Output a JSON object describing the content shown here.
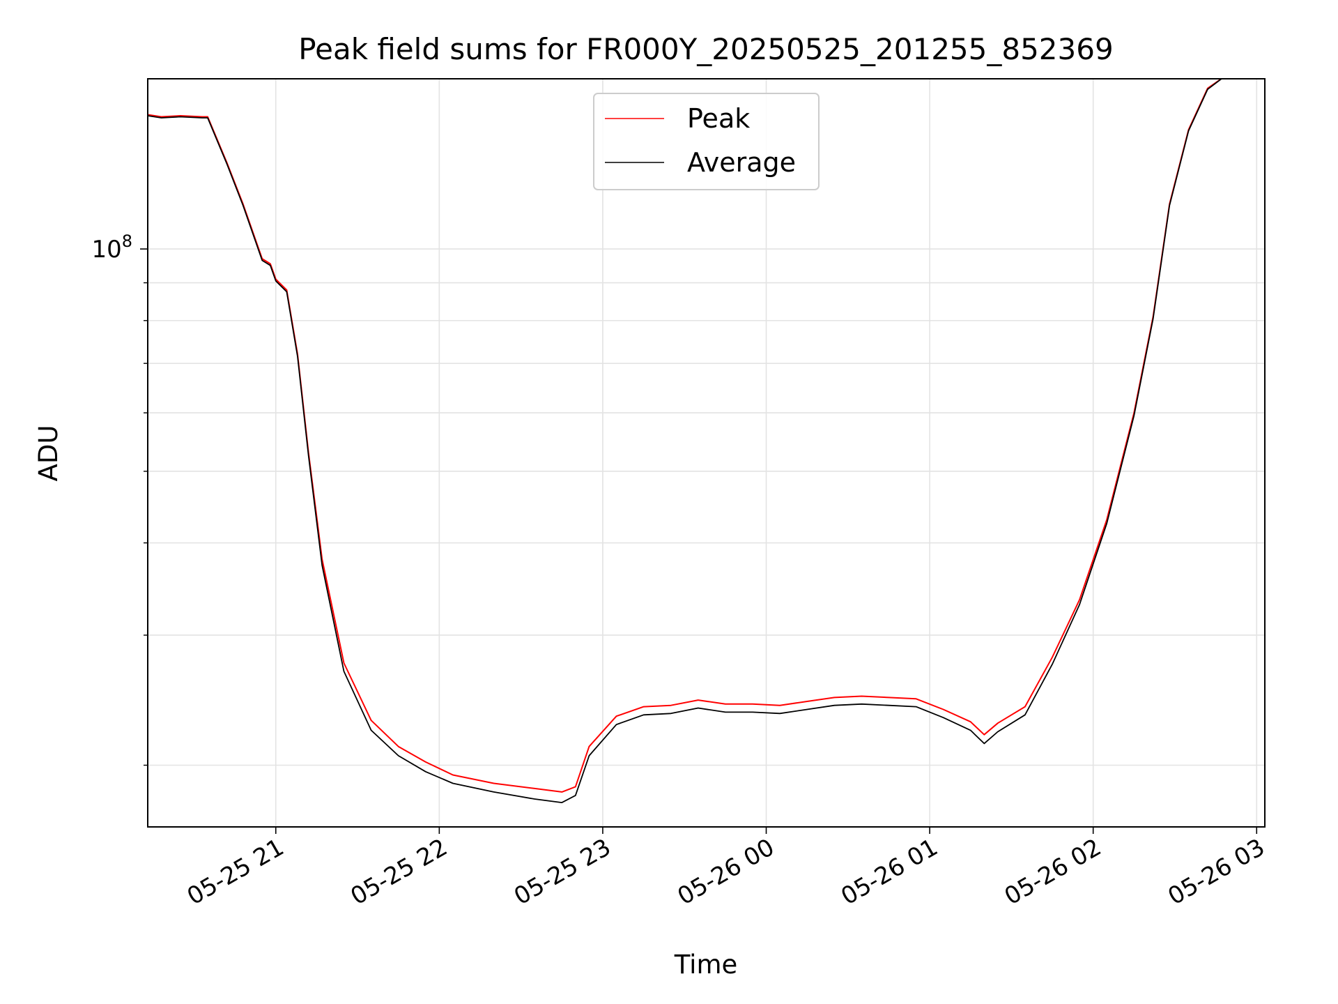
{
  "chart_data": {
    "type": "line",
    "title": "Peak field sums for FR000Y_20250525_201255_852369",
    "xlabel": "Time",
    "ylabel": "ADU",
    "y_scale": "log",
    "grid": true,
    "grid_minor_y": true,
    "legend_position": "upper center",
    "xlim": [
      "2025-05-25 20:13",
      "2025-05-26 03:03"
    ],
    "ylim": [
      16500000,
      170000000
    ],
    "x_ticks": [
      {
        "t": "2025-05-25 21:00",
        "label": "05-25 21"
      },
      {
        "t": "2025-05-25 22:00",
        "label": "05-25 22"
      },
      {
        "t": "2025-05-25 23:00",
        "label": "05-25 23"
      },
      {
        "t": "2025-05-26 00:00",
        "label": "05-26 00"
      },
      {
        "t": "2025-05-26 01:00",
        "label": "05-26 01"
      },
      {
        "t": "2025-05-26 02:00",
        "label": "05-26 02"
      },
      {
        "t": "2025-05-26 03:00",
        "label": "05-26 03"
      }
    ],
    "y_major_ticks": [
      {
        "v": 100000000,
        "base": "10",
        "exp": "8"
      }
    ],
    "y_minor_ticks": [
      20000000,
      30000000,
      40000000,
      50000000,
      60000000,
      70000000,
      80000000,
      90000000
    ],
    "series": [
      {
        "name": "Peak",
        "color": "#ff0000",
        "points": [
          [
            "2025-05-25 20:13",
            152000000
          ],
          [
            "2025-05-25 20:18",
            151000000
          ],
          [
            "2025-05-25 20:25",
            151500000
          ],
          [
            "2025-05-25 20:33",
            151000000
          ],
          [
            "2025-05-25 20:35",
            151000000
          ],
          [
            "2025-05-25 20:42",
            131000000
          ],
          [
            "2025-05-25 20:48",
            115000000
          ],
          [
            "2025-05-25 20:55",
            97000000
          ],
          [
            "2025-05-25 20:58",
            95500000
          ],
          [
            "2025-05-25 21:00",
            91000000
          ],
          [
            "2025-05-25 21:04",
            88000000
          ],
          [
            "2025-05-25 21:08",
            72000000
          ],
          [
            "2025-05-25 21:12",
            53000000
          ],
          [
            "2025-05-25 21:17",
            38000000
          ],
          [
            "2025-05-25 21:25",
            27500000
          ],
          [
            "2025-05-25 21:35",
            23000000
          ],
          [
            "2025-05-25 21:45",
            21200000
          ],
          [
            "2025-05-25 21:55",
            20200000
          ],
          [
            "2025-05-25 22:05",
            19400000
          ],
          [
            "2025-05-25 22:20",
            18900000
          ],
          [
            "2025-05-25 22:35",
            18600000
          ],
          [
            "2025-05-25 22:45",
            18400000
          ],
          [
            "2025-05-25 22:50",
            18700000
          ],
          [
            "2025-05-25 22:55",
            21200000
          ],
          [
            "2025-05-25 23:05",
            23300000
          ],
          [
            "2025-05-25 23:15",
            24000000
          ],
          [
            "2025-05-25 23:25",
            24100000
          ],
          [
            "2025-05-25 23:35",
            24500000
          ],
          [
            "2025-05-25 23:45",
            24200000
          ],
          [
            "2025-05-25 23:55",
            24200000
          ],
          [
            "2025-05-26 00:05",
            24100000
          ],
          [
            "2025-05-26 00:15",
            24400000
          ],
          [
            "2025-05-26 00:25",
            24700000
          ],
          [
            "2025-05-26 00:35",
            24800000
          ],
          [
            "2025-05-26 00:45",
            24700000
          ],
          [
            "2025-05-26 00:55",
            24600000
          ],
          [
            "2025-05-26 01:05",
            23800000
          ],
          [
            "2025-05-26 01:15",
            22900000
          ],
          [
            "2025-05-26 01:20",
            22000000
          ],
          [
            "2025-05-26 01:25",
            22800000
          ],
          [
            "2025-05-26 01:35",
            24000000
          ],
          [
            "2025-05-26 01:45",
            28000000
          ],
          [
            "2025-05-26 01:55",
            33500000
          ],
          [
            "2025-05-26 02:05",
            43000000
          ],
          [
            "2025-05-26 02:15",
            60000000
          ],
          [
            "2025-05-26 02:22",
            81000000
          ],
          [
            "2025-05-26 02:28",
            115000000
          ],
          [
            "2025-05-26 02:35",
            145000000
          ],
          [
            "2025-05-26 02:42",
            165000000
          ],
          [
            "2025-05-26 02:48",
            171000000
          ]
        ]
      },
      {
        "name": "Average",
        "color": "#000000",
        "points": [
          [
            "2025-05-25 20:13",
            151500000
          ],
          [
            "2025-05-25 20:18",
            150500000
          ],
          [
            "2025-05-25 20:25",
            151000000
          ],
          [
            "2025-05-25 20:33",
            150500000
          ],
          [
            "2025-05-25 20:35",
            150500000
          ],
          [
            "2025-05-25 20:42",
            130500000
          ],
          [
            "2025-05-25 20:48",
            114500000
          ],
          [
            "2025-05-25 20:55",
            96500000
          ],
          [
            "2025-05-25 20:58",
            95000000
          ],
          [
            "2025-05-25 21:00",
            90500000
          ],
          [
            "2025-05-25 21:04",
            87500000
          ],
          [
            "2025-05-25 21:08",
            71500000
          ],
          [
            "2025-05-25 21:12",
            52500000
          ],
          [
            "2025-05-25 21:17",
            37300000
          ],
          [
            "2025-05-25 21:25",
            26800000
          ],
          [
            "2025-05-25 21:35",
            22300000
          ],
          [
            "2025-05-25 21:45",
            20600000
          ],
          [
            "2025-05-25 21:55",
            19600000
          ],
          [
            "2025-05-25 22:05",
            18900000
          ],
          [
            "2025-05-25 22:20",
            18400000
          ],
          [
            "2025-05-25 22:35",
            18000000
          ],
          [
            "2025-05-25 22:45",
            17800000
          ],
          [
            "2025-05-25 22:50",
            18200000
          ],
          [
            "2025-05-25 22:55",
            20600000
          ],
          [
            "2025-05-25 23:05",
            22700000
          ],
          [
            "2025-05-25 23:15",
            23400000
          ],
          [
            "2025-05-25 23:25",
            23500000
          ],
          [
            "2025-05-25 23:35",
            23900000
          ],
          [
            "2025-05-25 23:45",
            23600000
          ],
          [
            "2025-05-25 23:55",
            23600000
          ],
          [
            "2025-05-26 00:05",
            23500000
          ],
          [
            "2025-05-26 00:15",
            23800000
          ],
          [
            "2025-05-26 00:25",
            24100000
          ],
          [
            "2025-05-26 00:35",
            24200000
          ],
          [
            "2025-05-26 00:45",
            24100000
          ],
          [
            "2025-05-26 00:55",
            24000000
          ],
          [
            "2025-05-26 01:05",
            23200000
          ],
          [
            "2025-05-26 01:15",
            22300000
          ],
          [
            "2025-05-26 01:20",
            21400000
          ],
          [
            "2025-05-26 01:25",
            22200000
          ],
          [
            "2025-05-26 01:35",
            23400000
          ],
          [
            "2025-05-26 01:45",
            27400000
          ],
          [
            "2025-05-26 01:55",
            33000000
          ],
          [
            "2025-05-26 02:05",
            42500000
          ],
          [
            "2025-05-26 02:15",
            59500000
          ],
          [
            "2025-05-26 02:22",
            80500000
          ],
          [
            "2025-05-26 02:28",
            114500000
          ],
          [
            "2025-05-26 02:35",
            144500000
          ],
          [
            "2025-05-26 02:42",
            164500000
          ],
          [
            "2025-05-26 02:48",
            171000000
          ]
        ]
      }
    ]
  }
}
